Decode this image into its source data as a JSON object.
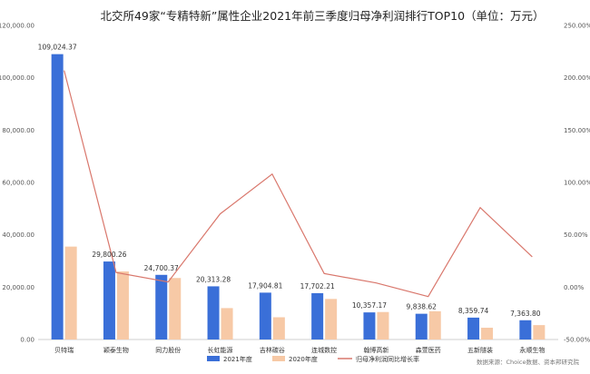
{
  "chart_data": {
    "type": "bar",
    "title": "北交所49家“专精特新”属性企业2021年前三季度归母净利润排行TOP10（单位：万元）",
    "categories": [
      "贝特瑞",
      "颖泰生物",
      "同力股份",
      "长虹能源",
      "吉林碳谷",
      "连城数控",
      "翰博高新",
      "森萱医药",
      "五新隧装",
      "永顺生物"
    ],
    "series": [
      {
        "name": "2021年度",
        "kind": "bar",
        "axis": "left",
        "color": "#3a6fd8",
        "values": [
          109024.37,
          29800.26,
          24700.37,
          20313.28,
          17904.81,
          17702.21,
          10357.17,
          9838.62,
          8359.74,
          7363.8
        ],
        "labels": [
          "109,024.37",
          "29,800.26",
          "24,700.37",
          "20,313.28",
          "17,904.81",
          "17,702.21",
          "10,357.17",
          "9,838.62",
          "8,359.74",
          "7,363.80"
        ]
      },
      {
        "name": "2020年度",
        "kind": "bar",
        "axis": "left",
        "color": "#f7c9a6",
        "values": [
          35500,
          26000,
          23500,
          12000,
          8500,
          15500,
          10500,
          10800,
          4500,
          5500
        ]
      },
      {
        "name": "归母净利润同比增长率",
        "kind": "line",
        "axis": "right",
        "color": "#d9776c",
        "values": [
          207,
          14,
          5,
          70,
          108,
          13,
          4,
          -9,
          76,
          29
        ]
      }
    ],
    "ylim": [
      0,
      120000
    ],
    "yticks": [
      "0.00",
      "20,000.00",
      "40,000.00",
      "60,000.00",
      "80,000.00",
      "100,000.00",
      "120,000.00"
    ],
    "y2lim": [
      -50,
      250
    ],
    "y2ticks": [
      "-50.00%",
      "0.00%",
      "50.00%",
      "100.00%",
      "150.00%",
      "200.00%",
      "250.00%"
    ],
    "legend_position": "bottom-center",
    "grid": false,
    "source": "数据来源：Choice数据、资本邦研究院"
  }
}
